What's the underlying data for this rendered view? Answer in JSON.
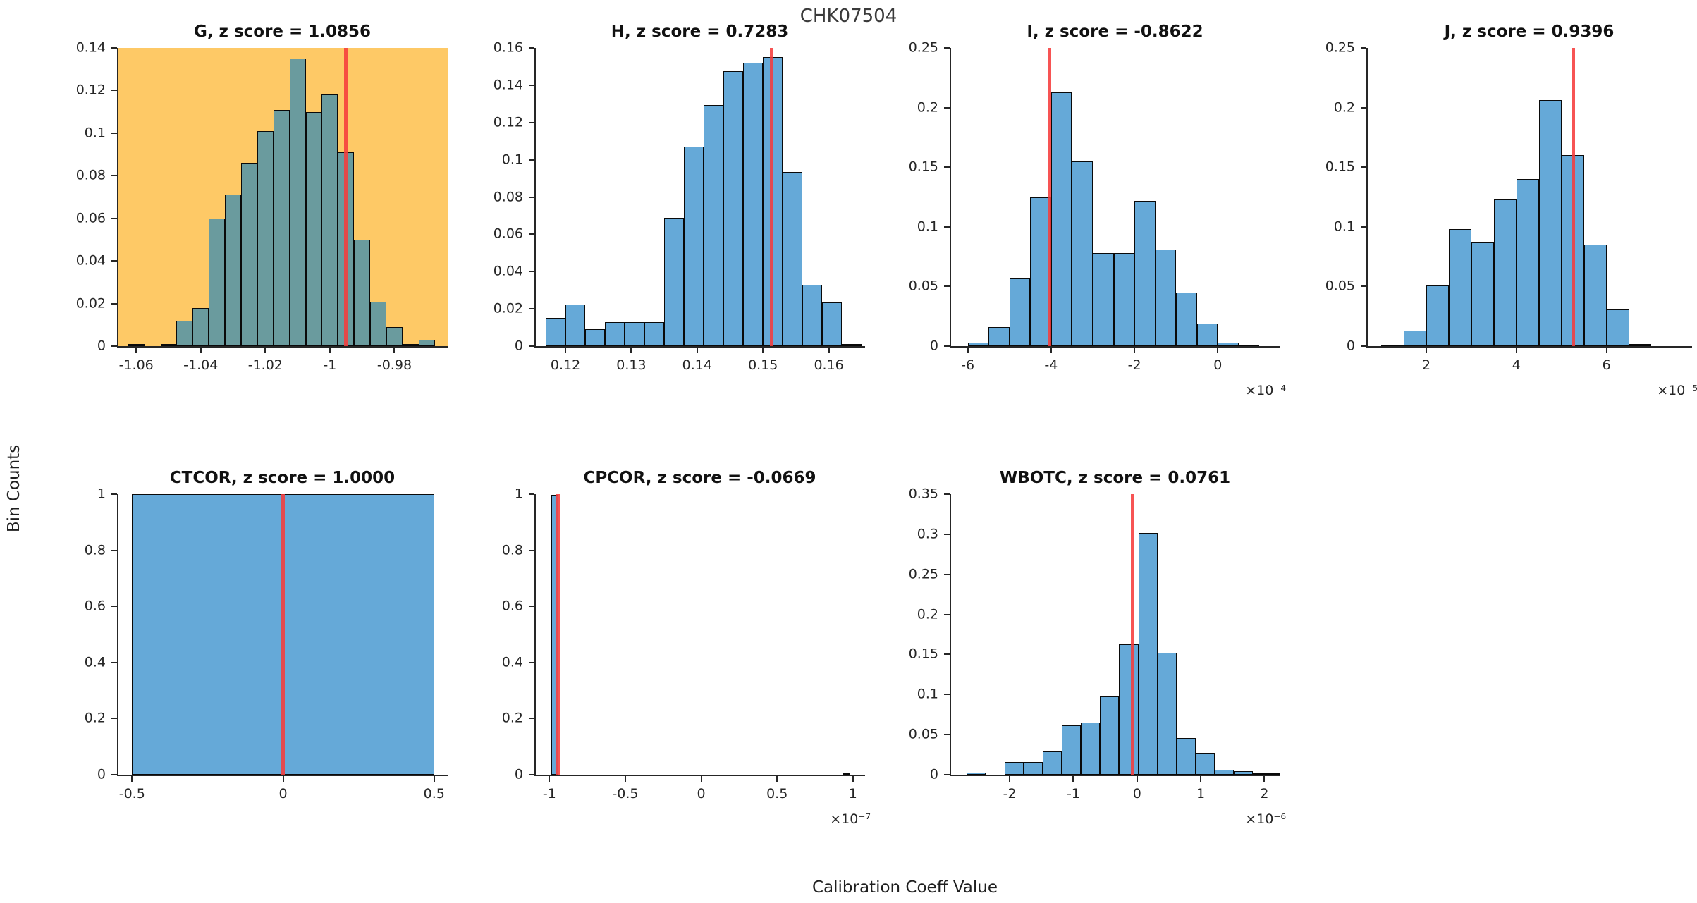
{
  "figure": {
    "title": "CHK07504",
    "ylabel": "Bin Counts",
    "xlabel": "Calibration Coeff Value"
  },
  "colors": {
    "bar_blue": "#65A9D8",
    "bar_teal": "#6A9B9E",
    "highlight_bg": "#FEC966",
    "ref_line": "#F63C3C",
    "axis": "#262626",
    "bar_edge": "#0A0A0A"
  },
  "chart_data": [
    {
      "type": "bar",
      "name": "G",
      "title": "G, z score = 1.0856",
      "plot_bg": "#FEC966",
      "bar_color": "#6A9B9E",
      "xlim": [
        -1.0655,
        -0.9635
      ],
      "ylim": [
        0,
        0.14
      ],
      "bin_start": -1.0625,
      "bin_width": 0.005,
      "values": [
        0.001,
        0,
        0.001,
        0.012,
        0.018,
        0.06,
        0.071,
        0.086,
        0.101,
        0.111,
        0.135,
        0.11,
        0.118,
        0.091,
        0.05,
        0.021,
        0.009,
        0.001,
        0.003
      ],
      "ref_x": -0.995,
      "xticks": [
        -1.06,
        -1.04,
        -1.02,
        -1,
        -0.98
      ],
      "xtick_labels": [
        "-1.06",
        "-1.04",
        "-1.02",
        "-1",
        "-0.98"
      ],
      "yticks": [
        0,
        0.02,
        0.04,
        0.06,
        0.08,
        0.1,
        0.12,
        0.14
      ],
      "ytick_labels": [
        "0",
        "0.02",
        "0.04",
        "0.06",
        "0.08",
        "0.1",
        "0.12",
        "0.14"
      ]
    },
    {
      "type": "bar",
      "name": "H",
      "title": "H, z score = 0.7283",
      "bar_color": "#65A9D8",
      "xlim": [
        0.1155,
        0.1655
      ],
      "ylim": [
        0,
        0.16
      ],
      "bin_start": 0.117,
      "bin_width": 0.003,
      "values": [
        0.015,
        0.0225,
        0.009,
        0.013,
        0.013,
        0.013,
        0.069,
        0.107,
        0.1295,
        0.1475,
        0.152,
        0.155,
        0.0935,
        0.033,
        0.0235,
        0.001
      ],
      "ref_x": 0.1513,
      "xticks": [
        0.12,
        0.13,
        0.14,
        0.15,
        0.16
      ],
      "xtick_labels": [
        "0.12",
        "0.13",
        "0.14",
        "0.15",
        "0.16"
      ],
      "yticks": [
        0,
        0.02,
        0.04,
        0.06,
        0.08,
        0.1,
        0.12,
        0.14,
        0.16
      ],
      "ytick_labels": [
        "0",
        "0.02",
        "0.04",
        "0.06",
        "0.08",
        "0.1",
        "0.12",
        "0.14",
        "0.16"
      ]
    },
    {
      "type": "bar",
      "name": "I",
      "title": "I, z score = -0.8622",
      "bar_color": "#65A9D8",
      "xlim": [
        -6.4,
        1.5
      ],
      "ylim": [
        0,
        0.25
      ],
      "bin_start": -6.0,
      "bin_width": 0.5,
      "values": [
        0.003,
        0.016,
        0.057,
        0.125,
        0.213,
        0.155,
        0.078,
        0.078,
        0.122,
        0.081,
        0.045,
        0.019,
        0.003,
        0.001
      ],
      "ref_x": -4.04,
      "xticks": [
        -6,
        -4,
        -2,
        0
      ],
      "xtick_labels": [
        "-6",
        "-4",
        "-2",
        "0"
      ],
      "yticks": [
        0,
        0.05,
        0.1,
        0.15,
        0.2,
        0.25
      ],
      "ytick_labels": [
        "0",
        "0.05",
        "0.1",
        "0.15",
        "0.2",
        "0.25"
      ],
      "exponent": "×10⁻⁴"
    },
    {
      "type": "bar",
      "name": "J",
      "title": "J, z score = 0.9396",
      "bar_color": "#65A9D8",
      "xlim": [
        0.7,
        7.9
      ],
      "ylim": [
        0,
        0.25
      ],
      "bin_start": 1.0,
      "bin_width": 0.5,
      "values": [
        0.001,
        0.013,
        0.051,
        0.098,
        0.087,
        0.123,
        0.14,
        0.206,
        0.16,
        0.085,
        0.031,
        0.002
      ],
      "ref_x": 5.26,
      "xticks": [
        2,
        4,
        6
      ],
      "xtick_labels": [
        "2",
        "4",
        "6"
      ],
      "yticks": [
        0,
        0.05,
        0.1,
        0.15,
        0.2,
        0.25
      ],
      "ytick_labels": [
        "0",
        "0.05",
        "0.1",
        "0.15",
        "0.2",
        "0.25"
      ],
      "exponent": "×10⁻⁵"
    },
    {
      "type": "bar",
      "name": "CTCOR",
      "title": "CTCOR, z score = 1.0000",
      "bar_color": "#65A9D8",
      "xlim": [
        -0.545,
        0.545
      ],
      "ylim": [
        0,
        1
      ],
      "bin_start": -0.5,
      "bin_width": 1.0,
      "values": [
        1
      ],
      "ref_x": 0,
      "xticks": [
        -0.5,
        0,
        0.5
      ],
      "xtick_labels": [
        "-0.5",
        "0",
        "0.5"
      ],
      "yticks": [
        0,
        0.2,
        0.4,
        0.6,
        0.8,
        1
      ],
      "ytick_labels": [
        "0",
        "0.2",
        "0.4",
        "0.6",
        "0.8",
        "1"
      ]
    },
    {
      "type": "bar",
      "name": "CPCOR",
      "title": "CPCOR, z score = -0.0669",
      "bar_color": "#65A9D8",
      "xlim": [
        -1.09,
        1.08
      ],
      "ylim": [
        0,
        1
      ],
      "bars": [
        {
          "x0": -0.99,
          "x1": -0.94,
          "h": 0.997
        },
        {
          "x0": 0.93,
          "x1": 0.98,
          "h": 0.004
        }
      ],
      "ref_x": -0.945,
      "xticks": [
        -1,
        -0.5,
        0,
        0.5,
        1
      ],
      "xtick_labels": [
        "-1",
        "-0.5",
        "0",
        "0.5",
        "1"
      ],
      "yticks": [
        0,
        0.2,
        0.4,
        0.6,
        0.8,
        1
      ],
      "ytick_labels": [
        "0",
        "0.2",
        "0.4",
        "0.6",
        "0.8",
        "1"
      ],
      "exponent": "×10⁻⁷"
    },
    {
      "type": "bar",
      "name": "WBOTC",
      "title": "WBOTC, z score = 0.0761",
      "bar_color": "#65A9D8",
      "xlim": [
        -2.92,
        2.25
      ],
      "ylim": [
        0,
        0.35
      ],
      "bin_start": -2.68,
      "bin_width": 0.3,
      "values": [
        0.003,
        0,
        0.016,
        0.016,
        0.029,
        0.062,
        0.065,
        0.098,
        0.163,
        0.302,
        0.152,
        0.046,
        0.027,
        0.006,
        0.004,
        0.001,
        0.001
      ],
      "ref_x": -0.07,
      "xticks": [
        -2,
        -1,
        0,
        1,
        2
      ],
      "xtick_labels": [
        "-2",
        "-1",
        "0",
        "1",
        "2"
      ],
      "yticks": [
        0,
        0.05,
        0.1,
        0.15,
        0.2,
        0.25,
        0.3,
        0.35
      ],
      "ytick_labels": [
        "0",
        "0.05",
        "0.1",
        "0.15",
        "0.2",
        "0.25",
        "0.3",
        "0.35"
      ],
      "exponent": "×10⁻⁶"
    }
  ]
}
